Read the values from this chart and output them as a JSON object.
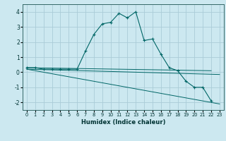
{
  "xlabel": "Humidex (Indice chaleur)",
  "ylabel": "",
  "background_color": "#cce8f0",
  "grid_color": "#aaccd8",
  "line_color": "#006666",
  "xlim": [
    -0.5,
    23.5
  ],
  "ylim": [
    -2.5,
    4.5
  ],
  "xticks": [
    0,
    1,
    2,
    3,
    4,
    5,
    6,
    7,
    8,
    9,
    10,
    11,
    12,
    13,
    14,
    15,
    16,
    17,
    18,
    19,
    20,
    21,
    22,
    23
  ],
  "yticks": [
    -2,
    -1,
    0,
    1,
    2,
    3,
    4
  ],
  "series1_x": [
    0,
    1,
    2,
    3,
    4,
    5,
    6,
    7,
    8,
    9,
    10,
    11,
    12,
    13,
    14,
    15,
    16,
    17,
    18,
    19,
    20,
    21,
    22
  ],
  "series1_y": [
    0.3,
    0.3,
    0.2,
    0.2,
    0.2,
    0.2,
    0.2,
    1.4,
    2.5,
    3.2,
    3.3,
    3.9,
    3.6,
    4.0,
    2.1,
    2.2,
    1.2,
    0.3,
    0.1,
    -0.6,
    -1.0,
    -1.0,
    -1.9
  ],
  "series2_x": [
    0,
    22
  ],
  "series2_y": [
    0.3,
    0.1
  ],
  "series3_x": [
    0,
    23
  ],
  "series3_y": [
    0.2,
    -2.1
  ],
  "series4_x": [
    0,
    23
  ],
  "series4_y": [
    0.2,
    -0.15
  ]
}
